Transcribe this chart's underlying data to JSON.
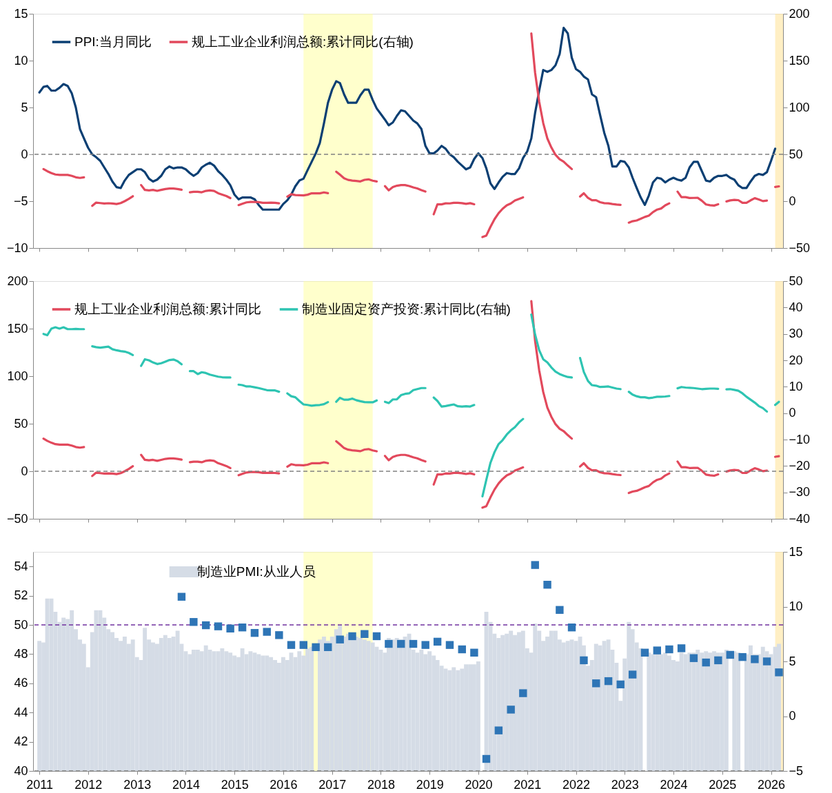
{
  "chart_data": [
    {
      "type": "line",
      "x": [
        "2011-01",
        "2011-02",
        "2011-03",
        "2011-04",
        "2011-05",
        "2011-06",
        "2011-07",
        "2011-08",
        "2011-09",
        "2011-10",
        "2011-11",
        "2011-12",
        "2012-01",
        "2012-02",
        "2012-03",
        "2012-04",
        "2012-05",
        "2012-06",
        "2012-07",
        "2012-08",
        "2012-09",
        "2012-10",
        "2012-11",
        "2012-12",
        "2013-01",
        "2013-02",
        "2013-03",
        "2013-04",
        "2013-05",
        "2013-06",
        "2013-07",
        "2013-08",
        "2013-09",
        "2013-10",
        "2013-11",
        "2013-12",
        "2014-01",
        "2014-02",
        "2014-03",
        "2014-04",
        "2014-05",
        "2014-06",
        "2014-07",
        "2014-08",
        "2014-09",
        "2014-10",
        "2014-11",
        "2014-12",
        "2015-01",
        "2015-02",
        "2015-03",
        "2015-04",
        "2015-05",
        "2015-06",
        "2015-07",
        "2015-08",
        "2015-09",
        "2015-10",
        "2015-11",
        "2015-12",
        "2016-01",
        "2016-02",
        "2016-03",
        "2016-04",
        "2016-05",
        "2016-06",
        "2016-07",
        "2016-08",
        "2016-09",
        "2016-10",
        "2016-11",
        "2016-12",
        "2017-01",
        "2017-02",
        "2017-03",
        "2017-04",
        "2017-05",
        "2017-06",
        "2017-07",
        "2017-08",
        "2017-09",
        "2017-10",
        "2017-11",
        "2017-12",
        "2018-01",
        "2018-02",
        "2018-03",
        "2018-04",
        "2018-05",
        "2018-06",
        "2018-07",
        "2018-08",
        "2018-09",
        "2018-10",
        "2018-11",
        "2018-12",
        "2019-01",
        "2019-02",
        "2019-03",
        "2019-04",
        "2019-05",
        "2019-06",
        "2019-07",
        "2019-08",
        "2019-09",
        "2019-10",
        "2019-11",
        "2019-12",
        "2020-01",
        "2020-02",
        "2020-03",
        "2020-04",
        "2020-05",
        "2020-06",
        "2020-07",
        "2020-08",
        "2020-09",
        "2020-10",
        "2020-11",
        "2020-12",
        "2021-01",
        "2021-02",
        "2021-03",
        "2021-04",
        "2021-05",
        "2021-06",
        "2021-07",
        "2021-08",
        "2021-09",
        "2021-10",
        "2021-11",
        "2021-12",
        "2022-01",
        "2022-02",
        "2022-03",
        "2022-04",
        "2022-05",
        "2022-06",
        "2022-07",
        "2022-08",
        "2022-09",
        "2022-10",
        "2022-11",
        "2022-12",
        "2023-01",
        "2023-02",
        "2023-03",
        "2023-04",
        "2023-05",
        "2023-06",
        "2023-07",
        "2023-08",
        "2023-09",
        "2023-10",
        "2023-11",
        "2023-12",
        "2024-01",
        "2024-02",
        "2024-03",
        "2024-04",
        "2024-05",
        "2024-06",
        "2024-07",
        "2024-08",
        "2024-09",
        "2024-10",
        "2024-11",
        "2024-12",
        "2025-01",
        "2025-02",
        "2025-03",
        "2025-04",
        "2025-05",
        "2025-06",
        "2025-07",
        "2025-08",
        "2025-09",
        "2025-10",
        "2025-11",
        "2025-12",
        "2026-01",
        "2026-02",
        "2026-03"
      ],
      "xlim": [
        "2010-11-15",
        "2026-04"
      ],
      "xticks": [
        "2011",
        "2012",
        "2013",
        "2014",
        "2015",
        "2016",
        "2017",
        "2018",
        "2019",
        "2020",
        "2021",
        "2022",
        "2023",
        "2024",
        "2025",
        "2026"
      ],
      "ylim": [
        -10,
        15
      ],
      "yticks": [
        -10,
        -5,
        0,
        5,
        10,
        15
      ],
      "y2lim": [
        -50,
        200
      ],
      "y2ticks": [
        -50,
        0,
        50,
        100,
        150,
        200
      ],
      "tick_labels": "y",
      "legend": "top left",
      "series": [
        {
          "name": "PPI:当月同比",
          "color": "#0b3f73",
          "values": [
            6.6,
            7.2,
            7.3,
            6.8,
            6.8,
            7.1,
            7.5,
            7.3,
            6.5,
            5.0,
            2.7,
            1.7,
            0.7,
            0.0,
            -0.3,
            -0.7,
            -1.4,
            -2.1,
            -2.9,
            -3.5,
            -3.6,
            -2.8,
            -2.2,
            -1.9,
            -1.6,
            -1.6,
            -1.9,
            -2.6,
            -2.9,
            -2.7,
            -2.3,
            -1.6,
            -1.3,
            -1.5,
            -1.4,
            -1.4,
            -1.6,
            -2.0,
            -2.3,
            -2.0,
            -1.4,
            -1.1,
            -0.9,
            -1.2,
            -1.8,
            -2.2,
            -2.7,
            -3.3,
            -4.3,
            -4.8,
            -4.6,
            -4.6,
            -4.6,
            -4.8,
            -5.4,
            -5.9,
            -5.9,
            -5.9,
            -5.9,
            -5.9,
            -5.3,
            -4.9,
            -4.3,
            -3.4,
            -2.8,
            -2.6,
            -1.7,
            -0.8,
            0.1,
            1.2,
            3.3,
            5.5,
            6.9,
            7.8,
            7.6,
            6.4,
            5.5,
            5.5,
            5.5,
            6.3,
            6.9,
            6.9,
            5.8,
            4.9,
            4.3,
            3.7,
            3.1,
            3.4,
            4.1,
            4.7,
            4.6,
            4.1,
            3.6,
            3.3,
            2.7,
            0.9,
            0.1,
            0.1,
            0.4,
            0.9,
            0.6,
            0.0,
            -0.3,
            -0.8,
            -1.2,
            -1.6,
            -1.4,
            -0.5,
            0.1,
            -0.4,
            -1.5,
            -3.1,
            -3.7,
            -3.0,
            -2.4,
            -2.0,
            -2.1,
            -2.1,
            -1.5,
            -0.4,
            0.3,
            1.7,
            4.4,
            6.8,
            9.0,
            8.8,
            9.0,
            9.5,
            10.7,
            13.5,
            12.9,
            10.3,
            9.1,
            8.8,
            8.3,
            8.0,
            6.4,
            6.1,
            4.2,
            2.3,
            0.9,
            -1.3,
            -1.3,
            -0.7,
            -0.8,
            -1.4,
            -2.5,
            -3.6,
            -4.6,
            -5.4,
            -4.4,
            -3.0,
            -2.5,
            -2.6,
            -3.0,
            -2.7,
            -2.5,
            -2.7,
            -2.8,
            -2.5,
            -1.4,
            -0.8,
            -0.8,
            -1.8,
            -2.8,
            -2.9,
            -2.5,
            -2.3,
            -2.3,
            -2.2,
            -2.5,
            -2.7,
            -3.3,
            -3.6,
            -3.6,
            -2.9,
            -2.3,
            -2.1,
            -2.2,
            -1.9,
            -0.7,
            0.6,
            null
          ]
        },
        {
          "name": "规上工业企业利润总额:累计同比(右轴)",
          "color": "#e2495c",
          "axis": "y2",
          "values": [
            null,
            34.3,
            32,
            30,
            28.5,
            28,
            28,
            28,
            27,
            25.5,
            24.8,
            25.5,
            null,
            -5,
            -1.5,
            -2,
            -2.5,
            -2.2,
            -2.5,
            -3,
            -2,
            0,
            2.5,
            5.3,
            null,
            17.2,
            12,
            11.5,
            12,
            11,
            12,
            13,
            13.5,
            13.5,
            13,
            12.2,
            null,
            9.5,
            10,
            10,
            9.5,
            11,
            11.5,
            11,
            8.5,
            7,
            5.5,
            3.3,
            null,
            -4.2,
            -2.7,
            -1.3,
            -0.8,
            -0.8,
            -1,
            -1.7,
            -1.7,
            -1.6,
            -1.8,
            -2.3,
            null,
            4.8,
            7.4,
            6.5,
            6.4,
            6.2,
            6.9,
            8.4,
            8.4,
            8.4,
            9.4,
            8.5,
            null,
            31.5,
            28.3,
            24.4,
            22.7,
            22,
            21.6,
            21.1,
            22.8,
            23.3,
            21.9,
            21,
            null,
            16.1,
            11.6,
            15,
            16.5,
            17.2,
            17.2,
            16.2,
            14.7,
            13.6,
            11.8,
            10.3,
            null,
            -14,
            -3.3,
            -3.4,
            -2.3,
            -2.4,
            -1.7,
            -1.7,
            -2.1,
            -2.9,
            -2.1,
            -3.3,
            null,
            -38.3,
            -36.7,
            -27.4,
            -19.3,
            -12.8,
            -8.1,
            -4.4,
            -2.4,
            0.7,
            2.4,
            4.1,
            null,
            178.9,
            137.3,
            106,
            83.4,
            66.9,
            57.3,
            49.5,
            44.7,
            42.2,
            38,
            34.3,
            null,
            5,
            8.5,
            3.5,
            1,
            1,
            -1.1,
            -2.1,
            -2.3,
            -3,
            -3.6,
            -4,
            null,
            -22.9,
            -21.4,
            -20.6,
            -18.8,
            -16.8,
            -15.5,
            -11.7,
            -9,
            -7.8,
            -4.4,
            -2.3,
            null,
            10.2,
            4.3,
            4.3,
            3.4,
            3.5,
            3.6,
            0.5,
            -3.5,
            -4.3,
            -4.7,
            -3.3,
            null,
            -0.3,
            0.8,
            1.4,
            1.1,
            -1.8,
            -1.7,
            0.9,
            3.2,
            1.9,
            0.1,
            0.6,
            null,
            15.2,
            15.8
          ]
        }
      ],
      "ref_lines": [
        {
          "axis": "y",
          "value": 0,
          "color": "#808080",
          "line_style": "dashed"
        }
      ],
      "bands": [
        {
          "axis": "x",
          "from": "2016-06",
          "to": "2017-11",
          "color": "#ffff99"
        },
        {
          "axis": "x",
          "from": "2026-02",
          "to": "2026-04",
          "color": "#ffe08a"
        }
      ]
    },
    {
      "type": "line",
      "x": [
        "2011-02",
        "2011-03",
        "2011-04",
        "2011-05",
        "2011-06",
        "2011-07",
        "2011-08",
        "2011-09",
        "2011-10",
        "2011-11",
        "2011-12",
        "2012-01",
        "2012-02",
        "2012-03",
        "2012-04",
        "2012-05",
        "2012-06",
        "2012-07",
        "2012-08",
        "2012-09",
        "2012-10",
        "2012-11",
        "2012-12",
        "2013-01",
        "2013-02",
        "2013-03",
        "2013-04",
        "2013-05",
        "2013-06",
        "2013-07",
        "2013-08",
        "2013-09",
        "2013-10",
        "2013-11",
        "2013-12",
        "2014-01",
        "2014-02",
        "2014-03",
        "2014-04",
        "2014-05",
        "2014-06",
        "2014-07",
        "2014-08",
        "2014-09",
        "2014-10",
        "2014-11",
        "2014-12",
        "2015-01",
        "2015-02",
        "2015-03",
        "2015-04",
        "2015-05",
        "2015-06",
        "2015-07",
        "2015-08",
        "2015-09",
        "2015-10",
        "2015-11",
        "2015-12",
        "2016-01",
        "2016-02",
        "2016-03",
        "2016-04",
        "2016-05",
        "2016-06",
        "2016-07",
        "2016-08",
        "2016-09",
        "2016-10",
        "2016-11",
        "2016-12",
        "2017-01",
        "2017-02",
        "2017-03",
        "2017-04",
        "2017-05",
        "2017-06",
        "2017-07",
        "2017-08",
        "2017-09",
        "2017-10",
        "2017-11",
        "2017-12",
        "2018-01",
        "2018-02",
        "2018-03",
        "2018-04",
        "2018-05",
        "2018-06",
        "2018-07",
        "2018-08",
        "2018-09",
        "2018-10",
        "2018-11",
        "2018-12",
        "2019-01",
        "2019-02",
        "2019-03",
        "2019-04",
        "2019-05",
        "2019-06",
        "2019-07",
        "2019-08",
        "2019-09",
        "2019-10",
        "2019-11",
        "2019-12",
        "2020-01",
        "2020-02",
        "2020-03",
        "2020-04",
        "2020-05",
        "2020-06",
        "2020-07",
        "2020-08",
        "2020-09",
        "2020-10",
        "2020-11",
        "2020-12",
        "2021-01",
        "2021-02",
        "2021-03",
        "2021-04",
        "2021-05",
        "2021-06",
        "2021-07",
        "2021-08",
        "2021-09",
        "2021-10",
        "2021-11",
        "2021-12",
        "2022-01",
        "2022-02",
        "2022-03",
        "2022-04",
        "2022-05",
        "2022-06",
        "2022-07",
        "2022-08",
        "2022-09",
        "2022-10",
        "2022-11",
        "2022-12",
        "2023-01",
        "2023-02",
        "2023-03",
        "2023-04",
        "2023-05",
        "2023-06",
        "2023-07",
        "2023-08",
        "2023-09",
        "2023-10",
        "2023-11",
        "2023-12",
        "2024-01",
        "2024-02",
        "2024-03",
        "2024-04",
        "2024-05",
        "2024-06",
        "2024-07",
        "2024-08",
        "2024-09",
        "2024-10",
        "2024-11",
        "2024-12",
        "2025-01",
        "2025-02",
        "2025-03",
        "2025-04",
        "2025-05",
        "2025-06",
        "2025-07",
        "2025-08",
        "2025-09",
        "2025-10",
        "2025-11",
        "2025-12",
        "2026-01",
        "2026-02",
        "2026-03"
      ],
      "xlim": [
        "2010-11-15",
        "2026-04"
      ],
      "xticks": [
        "2011",
        "2012",
        "2013",
        "2014",
        "2015",
        "2016",
        "2017",
        "2018",
        "2019",
        "2020",
        "2021",
        "2022",
        "2023",
        "2024",
        "2025",
        "2026"
      ],
      "ylim": [
        -50,
        200
      ],
      "yticks": [
        -50,
        0,
        50,
        100,
        150,
        200
      ],
      "y2lim": [
        -40,
        50
      ],
      "y2ticks": [
        -40,
        -30,
        -20,
        -10,
        0,
        10,
        20,
        30,
        40,
        50
      ],
      "tick_labels": "y",
      "legend": "top left",
      "series": [
        {
          "name": "规上工业企业利润总额:累计同比",
          "color": "#e2495c",
          "values": [
            34.3,
            32,
            30,
            28.5,
            28,
            28,
            28,
            27,
            25.5,
            24.8,
            25.5,
            null,
            -5,
            -1.5,
            -2,
            -2.5,
            -2.2,
            -2.5,
            -3,
            -2,
            0,
            2.5,
            5.3,
            null,
            17.2,
            12,
            11.5,
            12,
            11,
            12,
            13,
            13.5,
            13.5,
            13,
            12.2,
            null,
            9.5,
            10,
            10,
            9.5,
            11,
            11.5,
            11,
            8.5,
            7,
            5.5,
            3.3,
            null,
            -4.2,
            -2.7,
            -1.3,
            -0.8,
            -0.8,
            -1,
            -1.7,
            -1.7,
            -1.6,
            -1.8,
            -2.3,
            null,
            4.8,
            7.4,
            6.5,
            6.4,
            6.2,
            6.9,
            8.4,
            8.4,
            8.4,
            9.4,
            8.5,
            null,
            31.5,
            28.3,
            24.4,
            22.7,
            22,
            21.6,
            21.1,
            22.8,
            23.3,
            21.9,
            21,
            null,
            16.1,
            11.6,
            15,
            16.5,
            17.2,
            17.2,
            16.2,
            14.7,
            13.6,
            11.8,
            10.3,
            null,
            -14,
            -3.3,
            -3.4,
            -2.3,
            -2.4,
            -1.7,
            -1.7,
            -2.1,
            -2.9,
            -2.1,
            -3.3,
            null,
            -38.3,
            -36.7,
            -27.4,
            -19.3,
            -12.8,
            -8.1,
            -4.4,
            -2.4,
            0.7,
            2.4,
            4.1,
            null,
            178.9,
            137.3,
            106,
            83.4,
            66.9,
            57.3,
            49.5,
            44.7,
            42.2,
            38,
            34.3,
            null,
            5,
            8.5,
            3.5,
            1,
            1,
            -1.1,
            -2.1,
            -2.3,
            -3,
            -3.6,
            -4,
            null,
            -22.9,
            -21.4,
            -20.6,
            -18.8,
            -16.8,
            -15.5,
            -11.7,
            -9,
            -7.8,
            -4.4,
            -2.3,
            null,
            10.2,
            4.3,
            4.3,
            3.4,
            3.5,
            3.6,
            0.5,
            -3.5,
            -4.3,
            -4.7,
            -3.3,
            null,
            -0.3,
            0.8,
            1.4,
            1.1,
            -1.8,
            -1.7,
            0.9,
            3.2,
            1.9,
            0.1,
            0.6,
            null,
            15.2,
            15.8
          ]
        },
        {
          "name": "制造业固定资产投资:累计同比(右轴)",
          "color": "#2ec4b2",
          "axis": "y2",
          "values": [
            30,
            29.5,
            32,
            32.5,
            32,
            32.5,
            31.8,
            31.8,
            31.9,
            31.8,
            31.8,
            null,
            25.3,
            25,
            24.8,
            25,
            25.2,
            24.2,
            23.8,
            23.5,
            23.3,
            22.8,
            22.0,
            null,
            17.9,
            20.4,
            20,
            19.2,
            18.6,
            18.9,
            19.5,
            20.1,
            20.3,
            19.7,
            18.5,
            null,
            15.9,
            15.9,
            14.8,
            15.5,
            15.2,
            14.6,
            14.2,
            13.8,
            13.6,
            13.5,
            13.5,
            null,
            10.8,
            10.6,
            10.1,
            10.1,
            9.8,
            9.5,
            9.1,
            8.7,
            8.6,
            8.6,
            8.1,
            null,
            7.5,
            6.4,
            6.0,
            4.6,
            3.3,
            3.1,
            2.8,
            3.0,
            3.1,
            3.4,
            4.2,
            null,
            4.3,
            5.8,
            5.1,
            5.1,
            5.5,
            4.9,
            4.5,
            4.2,
            4.1,
            4.1,
            4.8,
            null,
            4.3,
            3.8,
            5.2,
            5.2,
            6.8,
            7.3,
            7.5,
            8.7,
            9.1,
            9.5,
            9.5,
            null,
            5.9,
            4.6,
            2.5,
            2.7,
            3.0,
            3.3,
            2.6,
            2.5,
            2.6,
            2.5,
            3.1,
            null,
            -31.5,
            -25.2,
            -18.8,
            -14.8,
            -11.7,
            -10.2,
            -8.1,
            -6.5,
            -5.3,
            -3.5,
            -2.2,
            null,
            37.3,
            29.8,
            23.8,
            20.4,
            19.2,
            17.3,
            15.7,
            14.8,
            14.2,
            13.7,
            13.5,
            null,
            20.9,
            15.6,
            12.2,
            10.6,
            10.4,
            9.9,
            10.0,
            10.1,
            9.7,
            9.3,
            9.1,
            null,
            8.1,
            7.0,
            6.4,
            6.0,
            6.0,
            5.7,
            5.9,
            6.2,
            6.2,
            6.3,
            6.5,
            null,
            9.4,
            9.9,
            9.7,
            9.6,
            9.5,
            9.3,
            9.1,
            9.2,
            9.3,
            9.3,
            9.2,
            null,
            9.0,
            9.1,
            8.8,
            8.5,
            7.5,
            6.2,
            5.1,
            4.0,
            2.7,
            1.9,
            0.6,
            null,
            3.1,
            4.3
          ]
        }
      ],
      "ref_lines": [
        {
          "axis": "y",
          "value": 0,
          "color": "#808080",
          "line_style": "dashed"
        }
      ],
      "bands": [
        {
          "axis": "x",
          "from": "2016-06",
          "to": "2017-11",
          "color": "#ffff99"
        },
        {
          "axis": "x",
          "from": "2026-02",
          "to": "2026-04",
          "color": "#ffe08a"
        }
      ]
    },
    {
      "type": "bar",
      "x": [
        "2011-01",
        "2011-02",
        "2011-03",
        "2011-04",
        "2011-05",
        "2011-06",
        "2011-07",
        "2011-08",
        "2011-09",
        "2011-10",
        "2011-11",
        "2011-12",
        "2012-01",
        "2012-02",
        "2012-03",
        "2012-04",
        "2012-05",
        "2012-06",
        "2012-07",
        "2012-08",
        "2012-09",
        "2012-10",
        "2012-11",
        "2012-12",
        "2013-01",
        "2013-02",
        "2013-03",
        "2013-04",
        "2013-05",
        "2013-06",
        "2013-07",
        "2013-08",
        "2013-09",
        "2013-10",
        "2013-11",
        "2013-12",
        "2014-01",
        "2014-02",
        "2014-03",
        "2014-04",
        "2014-05",
        "2014-06",
        "2014-07",
        "2014-08",
        "2014-09",
        "2014-10",
        "2014-11",
        "2014-12",
        "2015-01",
        "2015-02",
        "2015-03",
        "2015-04",
        "2015-05",
        "2015-06",
        "2015-07",
        "2015-08",
        "2015-09",
        "2015-10",
        "2015-11",
        "2015-12",
        "2016-01",
        "2016-02",
        "2016-03",
        "2016-04",
        "2016-05",
        "2016-06",
        "2016-07",
        "2016-08",
        "2016-09",
        "2016-10",
        "2016-11",
        "2016-12",
        "2017-01",
        "2017-02",
        "2017-03",
        "2017-04",
        "2017-05",
        "2017-06",
        "2017-07",
        "2017-08",
        "2017-09",
        "2017-10",
        "2017-11",
        "2017-12",
        "2018-01",
        "2018-02",
        "2018-03",
        "2018-04",
        "2018-05",
        "2018-06",
        "2018-07",
        "2018-08",
        "2018-09",
        "2018-10",
        "2018-11",
        "2018-12",
        "2019-01",
        "2019-02",
        "2019-03",
        "2019-04",
        "2019-05",
        "2019-06",
        "2019-07",
        "2019-08",
        "2019-09",
        "2019-10",
        "2019-11",
        "2019-12",
        "2020-01",
        "2020-02",
        "2020-03",
        "2020-04",
        "2020-05",
        "2020-06",
        "2020-07",
        "2020-08",
        "2020-09",
        "2020-10",
        "2020-11",
        "2020-12",
        "2021-01",
        "2021-02",
        "2021-03",
        "2021-04",
        "2021-05",
        "2021-06",
        "2021-07",
        "2021-08",
        "2021-09",
        "2021-10",
        "2021-11",
        "2021-12",
        "2022-01",
        "2022-02",
        "2022-03",
        "2022-04",
        "2022-05",
        "2022-06",
        "2022-07",
        "2022-08",
        "2022-09",
        "2022-10",
        "2022-11",
        "2022-12",
        "2023-01",
        "2023-02",
        "2023-03",
        "2023-04",
        "2023-05",
        "2023-06",
        "2023-07",
        "2023-08",
        "2023-09",
        "2023-10",
        "2023-11",
        "2023-12",
        "2024-01",
        "2024-02",
        "2024-03",
        "2024-04",
        "2024-05",
        "2024-06",
        "2024-07",
        "2024-08",
        "2024-09",
        "2024-10",
        "2024-11",
        "2024-12",
        "2025-01",
        "2025-02",
        "2025-03",
        "2025-04",
        "2025-05",
        "2025-06",
        "2025-07",
        "2025-08",
        "2025-09",
        "2025-10",
        "2025-11",
        "2025-12",
        "2026-01",
        "2026-02",
        "2026-03"
      ],
      "xlim": [
        "2010-11-15",
        "2026-04"
      ],
      "xticks": [
        "2011",
        "2012",
        "2013",
        "2014",
        "2015",
        "2016",
        "2017",
        "2018",
        "2019",
        "2020",
        "2021",
        "2022",
        "2023",
        "2024",
        "2025",
        "2026"
      ],
      "ylim": [
        40,
        55
      ],
      "yticks": [
        40,
        42,
        44,
        46,
        48,
        50,
        52,
        54
      ],
      "y2lim": [
        -5,
        15
      ],
      "y2ticks": [
        -5,
        0,
        5,
        10,
        15
      ],
      "legend": "top",
      "marker": "square",
      "series": [
        {
          "name": "制造业PMI:从业人员",
          "color": "#d5dce6",
          "values": [
            48.9,
            48.8,
            51.8,
            51.8,
            50.9,
            50.2,
            50.5,
            50.4,
            51.0,
            49.7,
            49.0,
            48.7,
            47.1,
            49.5,
            51.0,
            51.0,
            50.5,
            49.7,
            49.5,
            49.1,
            48.9,
            49.2,
            48.7,
            49.0,
            47.8,
            47.6,
            49.8,
            49.0,
            48.8,
            48.7,
            49.1,
            49.3,
            49.1,
            49.2,
            49.6,
            48.7,
            48.2,
            48.0,
            48.3,
            48.3,
            48.2,
            48.6,
            48.3,
            48.2,
            48.2,
            48.4,
            48.2,
            48.1,
            47.9,
            47.8,
            48.4,
            48.0,
            48.2,
            48.1,
            48.0,
            47.9,
            47.9,
            47.8,
            47.6,
            47.4,
            47.8,
            47.6,
            48.1,
            47.8,
            48.2,
            47.9,
            48.4,
            48.5,
            null,
            49.0,
            49.2,
            48.9,
            49.2,
            49.7,
            50.0,
            49.2,
            49.4,
            49.0,
            49.2,
            49.1,
            49.0,
            48.9,
            48.8,
            48.5,
            48.3,
            48.1,
            49.1,
            49.0,
            49.1,
            49.0,
            49.2,
            49.4,
            48.3,
            48.1,
            48.3,
            48.0,
            48.2,
            47.9,
            47.6,
            47.2,
            47.0,
            46.9,
            47.1,
            46.9,
            47.0,
            47.3,
            47.3,
            47.3,
            47.5,
            null,
            50.9,
            50.2,
            49.4,
            49.1,
            49.3,
            49.4,
            49.6,
            49.3,
            49.5,
            49.6,
            48.4,
            48.1,
            50.1,
            49.6,
            48.9,
            49.2,
            49.6,
            49.6,
            49.0,
            48.8,
            48.9,
            49.0,
            48.9,
            49.2,
            48.6,
            47.2,
            47.6,
            48.7,
            48.6,
            48.9,
            49.0,
            48.3,
            47.4,
            44.8,
            47.7,
            50.2,
            49.7,
            48.8,
            48.4,
            null,
            48.1,
            48.0,
            48.1,
            48.0,
            48.1,
            47.9,
            47.6,
            47.5,
            48.1,
            48.0,
            48.1,
            48.1,
            48.3,
            48.1,
            48.2,
            48.1,
            48.2,
            48.1,
            48.1,
            48.3,
            null,
            48.2,
            48.1,
            null,
            48.0,
            48.6,
            48.0,
            48.0,
            48.5,
            48.2,
            48.0,
            48.5,
            48.7
          ]
        },
        {
          "type": "scatter",
          "axis": "y2",
          "color": "#2e75b6",
          "x": [
            "2013-12",
            "2014-03",
            "2014-06",
            "2014-09",
            "2014-12",
            "2015-03",
            "2015-06",
            "2015-09",
            "2015-12",
            "2016-03",
            "2016-06",
            "2016-09",
            "2016-12",
            "2017-03",
            "2017-06",
            "2017-09",
            "2017-12",
            "2018-03",
            "2018-06",
            "2018-09",
            "2018-12",
            "2019-03",
            "2019-06",
            "2019-09",
            "2019-12",
            "2020-03",
            "2020-06",
            "2020-09",
            "2020-12",
            "2021-03",
            "2021-06",
            "2021-09",
            "2021-12",
            "2022-03",
            "2022-06",
            "2022-09",
            "2022-12",
            "2023-03",
            "2023-06",
            "2023-09",
            "2023-12",
            "2024-03",
            "2024-06",
            "2024-09",
            "2024-12",
            "2025-03",
            "2025-06",
            "2025-09",
            "2025-12",
            "2026-03"
          ],
          "values": [
            10.9,
            8.6,
            8.3,
            8.2,
            8.0,
            8.1,
            7.6,
            7.7,
            7.4,
            6.5,
            6.5,
            6.3,
            6.3,
            7.0,
            7.3,
            7.5,
            7.3,
            6.6,
            6.6,
            6.6,
            6.5,
            6.8,
            6.5,
            6.1,
            5.8,
            -3.9,
            -1.3,
            0.6,
            2.1,
            13.8,
            12.0,
            9.7,
            8.1,
            5.1,
            3.0,
            3.2,
            2.9,
            3.8,
            5.8,
            6.0,
            6.1,
            6.2,
            5.3,
            4.9,
            5.1,
            5.6,
            5.4,
            5.2,
            5.0,
            4.0
          ]
        }
      ],
      "ref_lines": [
        {
          "axis": "y",
          "value": 50,
          "color": "#7030a0",
          "line_style": "dashed"
        },
        {
          "axis": "y",
          "value": 40,
          "color": "#808080",
          "line_style": "dashed"
        }
      ],
      "bands": [
        {
          "axis": "x",
          "from": "2016-06",
          "to": "2017-11",
          "color": "#ffff99"
        },
        {
          "axis": "x",
          "from": "2026-02",
          "to": "2026-04",
          "color": "#ffe08a"
        }
      ]
    }
  ]
}
